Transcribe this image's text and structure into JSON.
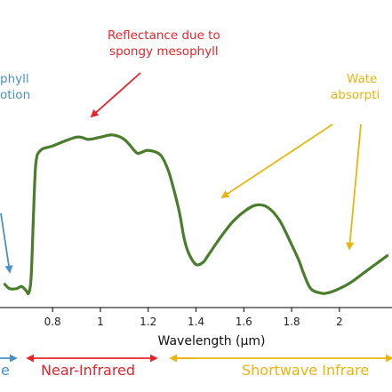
{
  "chart_data": {
    "type": "line",
    "title": "",
    "xlabel": "Wavelength (µm)",
    "ylabel": "",
    "xlim": [
      0.58,
      2.22
    ],
    "ylim": [
      0,
      1
    ],
    "x_ticks": [
      "0.8",
      "1",
      "1.2",
      "1.4",
      "1.6",
      "1.8",
      "2"
    ],
    "x_tick_values": [
      0.8,
      1.0,
      1.2,
      1.4,
      1.6,
      1.8,
      2.0
    ],
    "grid": false,
    "legend": "none",
    "series": [
      {
        "color": "#4a7d2c",
        "x": [
          0.6,
          0.62,
          0.65,
          0.67,
          0.69,
          0.7,
          0.71,
          0.72,
          0.73,
          0.75,
          0.8,
          0.9,
          0.95,
          1.0,
          1.05,
          1.1,
          1.15,
          1.17,
          1.2,
          1.25,
          1.28,
          1.3,
          1.33,
          1.35,
          1.37,
          1.4,
          1.43,
          1.45,
          1.5,
          1.55,
          1.6,
          1.65,
          1.7,
          1.75,
          1.8,
          1.83,
          1.85,
          1.88,
          1.92,
          1.95,
          2.0,
          2.05,
          2.1,
          2.15,
          2.2
        ],
        "values": [
          0.09,
          0.07,
          0.07,
          0.08,
          0.06,
          0.05,
          0.12,
          0.4,
          0.64,
          0.7,
          0.72,
          0.76,
          0.75,
          0.76,
          0.77,
          0.75,
          0.69,
          0.69,
          0.7,
          0.68,
          0.62,
          0.55,
          0.42,
          0.3,
          0.23,
          0.18,
          0.19,
          0.22,
          0.3,
          0.37,
          0.42,
          0.45,
          0.44,
          0.38,
          0.27,
          0.2,
          0.14,
          0.07,
          0.05,
          0.05,
          0.07,
          0.1,
          0.14,
          0.18,
          0.22
        ]
      }
    ]
  },
  "annotations": {
    "spongy_line1": "Reflectance due to",
    "spongy_line2": "spongy mesophyll",
    "chloro_line1": "phyll",
    "chloro_line2": "otion",
    "water_line1": "Wate",
    "water_line2": "absorpti"
  },
  "regions": {
    "visible": "e",
    "nir": "Near-Infrared",
    "swir": "Shortwave Infrare"
  },
  "colors": {
    "curve": "#4a7d2c",
    "red": "#e8232a",
    "blue": "#4a90c8",
    "yellow": "#e9b50f",
    "axis": "#000000"
  }
}
